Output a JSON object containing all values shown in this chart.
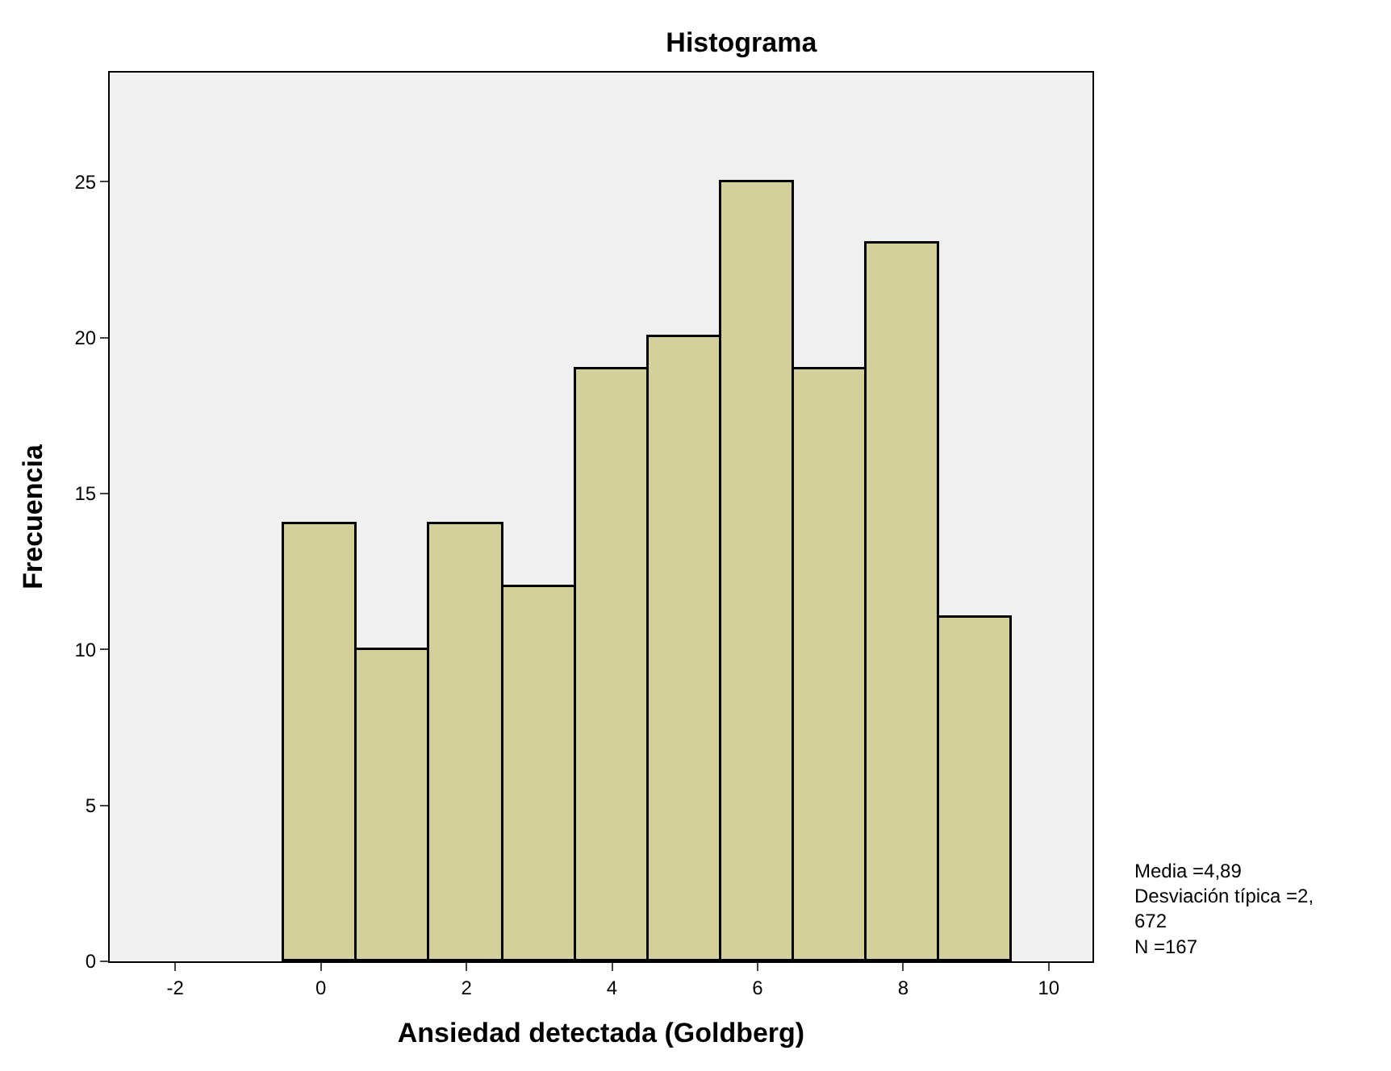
{
  "chart_data": {
    "type": "histogram",
    "title": "Histograma",
    "xlabel": "Ansiedad detectada (Goldberg)",
    "ylabel": "Frecuencia",
    "bins": [
      -0.5,
      0.5,
      1.5,
      2.5,
      3.5,
      4.5,
      5.5,
      6.5,
      7.5,
      8.5,
      9.5
    ],
    "values": [
      14,
      10,
      14,
      12,
      19,
      20,
      25,
      19,
      23,
      11
    ],
    "color": "#d4d09c",
    "xlim": [
      -2.9,
      10.6
    ],
    "xticks": [
      -2,
      0,
      2,
      4,
      6,
      8,
      10
    ],
    "ylim": [
      0,
      28.5
    ],
    "yticks": [
      0,
      5,
      10,
      15,
      20,
      25
    ],
    "grid": false,
    "annotations": [
      "Media =4,89\nDesviación típica =2,\n672\nN =167"
    ]
  }
}
